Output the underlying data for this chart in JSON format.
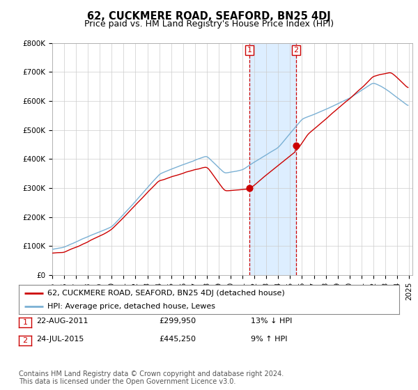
{
  "title": "62, CUCKMERE ROAD, SEAFORD, BN25 4DJ",
  "subtitle": "Price paid vs. HM Land Registry's House Price Index (HPI)",
  "ylim": [
    0,
    800000
  ],
  "yticks": [
    0,
    100000,
    200000,
    300000,
    400000,
    500000,
    600000,
    700000,
    800000
  ],
  "ytick_labels": [
    "£0",
    "£100K",
    "£200K",
    "£300K",
    "£400K",
    "£500K",
    "£600K",
    "£700K",
    "£800K"
  ],
  "sale1_year": 2011,
  "sale1_month": 8,
  "sale1_price": 299950,
  "sale1_label": "1",
  "sale2_year": 2015,
  "sale2_month": 7,
  "sale2_price": 445250,
  "sale2_label": "2",
  "hpi_color": "#7ab0d4",
  "price_color": "#cc0000",
  "highlight_color": "#ddeeff",
  "vline_color": "#cc0000",
  "grid_color": "#cccccc",
  "background_color": "#ffffff",
  "legend_entry1": "62, CUCKMERE ROAD, SEAFORD, BN25 4DJ (detached house)",
  "legend_entry2": "HPI: Average price, detached house, Lewes",
  "table_row1": [
    "1",
    "22-AUG-2011",
    "£299,950",
    "13% ↓ HPI"
  ],
  "table_row2": [
    "2",
    "24-JUL-2015",
    "£445,250",
    "9% ↑ HPI"
  ],
  "footnote": "Contains HM Land Registry data © Crown copyright and database right 2024.\nThis data is licensed under the Open Government Licence v3.0.",
  "title_fontsize": 10.5,
  "subtitle_fontsize": 9,
  "tick_fontsize": 7.5,
  "legend_fontsize": 8,
  "table_fontsize": 8,
  "footnote_fontsize": 7
}
